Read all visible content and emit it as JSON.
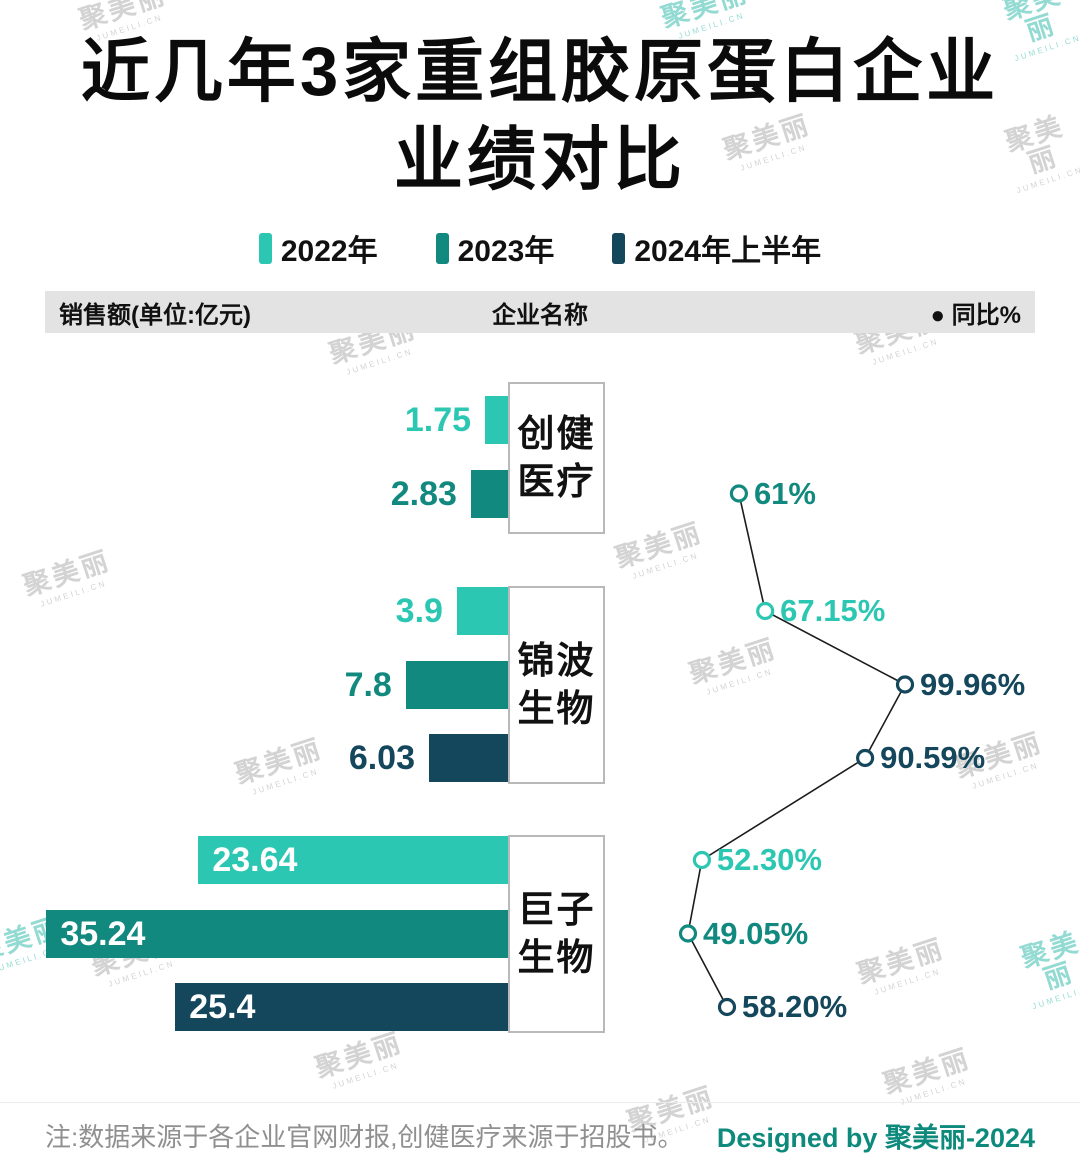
{
  "title": {
    "line1": "近几年3家重组胶原蛋白企业",
    "line2": "业绩对比"
  },
  "legend": [
    {
      "label": "2022年",
      "color": "#2cc7b2"
    },
    {
      "label": "2023年",
      "color": "#12897e"
    },
    {
      "label": "2024年上半年",
      "color": "#15475c"
    }
  ],
  "table_header": {
    "left": "销售额(单位:亿元)",
    "center": "企业名称",
    "right": "● 同比%"
  },
  "watermark": {
    "text": "聚美丽",
    "subtext": "JUMEILI.CN"
  },
  "footer": {
    "note": "注:数据来源于各企业官网财报,创健医疗来源于招股书。",
    "credit": "Designed by 聚美丽-2024"
  },
  "chart_data": {
    "type": "bar",
    "overlay": "line",
    "title": "近几年3家重组胶原蛋白企业业绩对比",
    "unit": "亿元",
    "yoy_label": "同比%",
    "series_years": [
      "2022年",
      "2023年",
      "2024年上半年"
    ],
    "companies": [
      {
        "name": "创健医疗",
        "bars": [
          {
            "year": "2022年",
            "value": 1.75,
            "yoy": null,
            "yoy_color": null
          },
          {
            "year": "2023年",
            "value": 2.83,
            "yoy": "61%",
            "yoy_color": "#12897e"
          }
        ]
      },
      {
        "name": "锦波生物",
        "bars": [
          {
            "year": "2022年",
            "value": 3.9,
            "yoy": "67.15%",
            "yoy_color": "#2cc7b2"
          },
          {
            "year": "2023年",
            "value": 7.8,
            "yoy": "99.96%",
            "yoy_color": "#15475c"
          },
          {
            "year": "2024年上半年",
            "value": 6.03,
            "yoy": "90.59%",
            "yoy_color": "#15475c"
          }
        ]
      },
      {
        "name": "巨子生物",
        "bars": [
          {
            "year": "2022年",
            "value": 23.64,
            "yoy": "52.30%",
            "yoy_color": "#2cc7b2"
          },
          {
            "year": "2023年",
            "value": 35.24,
            "yoy": "49.05%",
            "yoy_color": "#12897e"
          },
          {
            "year": "2024年上半年",
            "value": 25.4,
            "yoy": "58.20%",
            "yoy_color": "#15475c"
          }
        ]
      }
    ]
  }
}
